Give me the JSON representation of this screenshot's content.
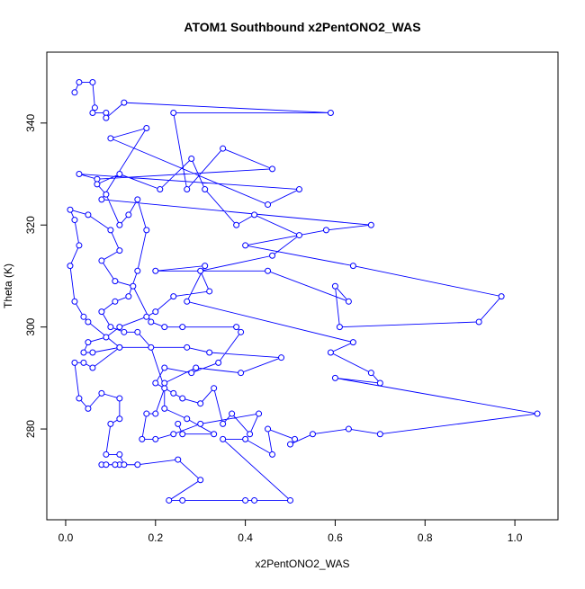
{
  "chart_data": {
    "type": "line",
    "marker": "circle",
    "color": "#0000ff",
    "title": "ATOM1 Southbound x2PentONO2_WAS",
    "xlabel": "x2PentONO2_WAS",
    "ylabel": "Theta (K)",
    "xlim": [
      -0.042,
      1.096
    ],
    "ylim": [
      262.2,
      353.9
    ],
    "xticks": [
      {
        "value": 0,
        "label": "0.0"
      },
      0.2,
      0.4,
      0.6,
      0.8,
      {
        "value": 1,
        "label": "1.0"
      }
    ],
    "yticks": [
      280,
      300,
      320,
      340
    ],
    "x": [
      0.02,
      0.03,
      0.06,
      0.065,
      0.06,
      0.09,
      0.09,
      0.13,
      0.59,
      0.24,
      0.27,
      0.35,
      0.46,
      0.07,
      0.03,
      0.52,
      0.45,
      0.1,
      0.18,
      0.08,
      0.68,
      0.58,
      0.4,
      0.64,
      0.97,
      0.92,
      0.61,
      0.6,
      0.63,
      0.45,
      0.2,
      0.31,
      0.27,
      0.64,
      0.59,
      0.68,
      0.7,
      0.6,
      1.05,
      0.7,
      0.63,
      0.55,
      0.5,
      0.51,
      0.45,
      0.46,
      0.4,
      0.35,
      0.5,
      0.42,
      0.4,
      0.26,
      0.23,
      0.3,
      0.25,
      0.16,
      0.12,
      0.11,
      0.08,
      0.09,
      0.13,
      0.12,
      0.09,
      0.1,
      0.12,
      0.12,
      0.08,
      0.05,
      0.03,
      0.02,
      0.04,
      0.06,
      0.12,
      0.05,
      0.04,
      0.02,
      0.01,
      0.03,
      0.02,
      0.01,
      0.05,
      0.1,
      0.12,
      0.08,
      0.11,
      0.15,
      0.19,
      0.22,
      0.26,
      0.38,
      0.39,
      0.34,
      0.28,
      0.22,
      0.2,
      0.24,
      0.26,
      0.3,
      0.33,
      0.35,
      0.37,
      0.41,
      0.43,
      0.3,
      0.24,
      0.2,
      0.17,
      0.18,
      0.2,
      0.22,
      0.19,
      0.16,
      0.13,
      0.1,
      0.08,
      0.11,
      0.14,
      0.16,
      0.18,
      0.16,
      0.14,
      0.12,
      0.09,
      0.07,
      0.12,
      0.21,
      0.28,
      0.31,
      0.38,
      0.42,
      0.52,
      0.46,
      0.3,
      0.32,
      0.24,
      0.2,
      0.18,
      0.12,
      0.09,
      0.05,
      0.04,
      0.06,
      0.12,
      0.27,
      0.32,
      0.48,
      0.39,
      0.29,
      0.22,
      0.22,
      0.27,
      0.33,
      0.26,
      0.25
    ],
    "values": [
      346,
      348,
      348,
      343,
      342,
      342,
      341,
      344,
      342,
      342,
      327,
      335,
      331,
      329,
      330,
      327,
      324,
      337,
      339,
      325,
      320,
      319,
      316,
      312,
      306,
      301,
      300,
      308,
      305,
      311,
      311,
      312,
      305,
      297,
      295,
      291,
      289,
      290,
      283,
      279,
      280,
      279,
      277,
      278,
      280,
      275,
      278,
      278,
      266,
      266,
      266,
      266,
      266,
      270,
      274,
      273,
      273,
      273,
      273,
      273,
      273,
      275,
      275,
      281,
      282,
      286,
      287,
      284,
      286,
      293,
      293,
      292,
      296,
      301,
      302,
      305,
      312,
      316,
      321,
      323,
      322,
      319,
      315,
      313,
      309,
      308,
      301,
      300,
      300,
      300,
      299,
      293,
      291,
      292,
      289,
      287,
      286,
      285,
      288,
      281,
      283,
      279,
      283,
      281,
      279,
      278,
      278,
      283,
      283,
      288,
      296,
      299,
      299,
      300,
      303,
      305,
      306,
      311,
      319,
      325,
      322,
      320,
      326,
      328,
      330,
      327,
      333,
      327,
      320,
      322,
      318,
      314,
      311,
      307,
      306,
      303,
      302,
      300,
      298,
      297,
      295,
      295,
      296,
      296,
      295,
      294,
      291,
      292,
      289,
      284,
      282,
      279,
      279,
      281
    ]
  }
}
